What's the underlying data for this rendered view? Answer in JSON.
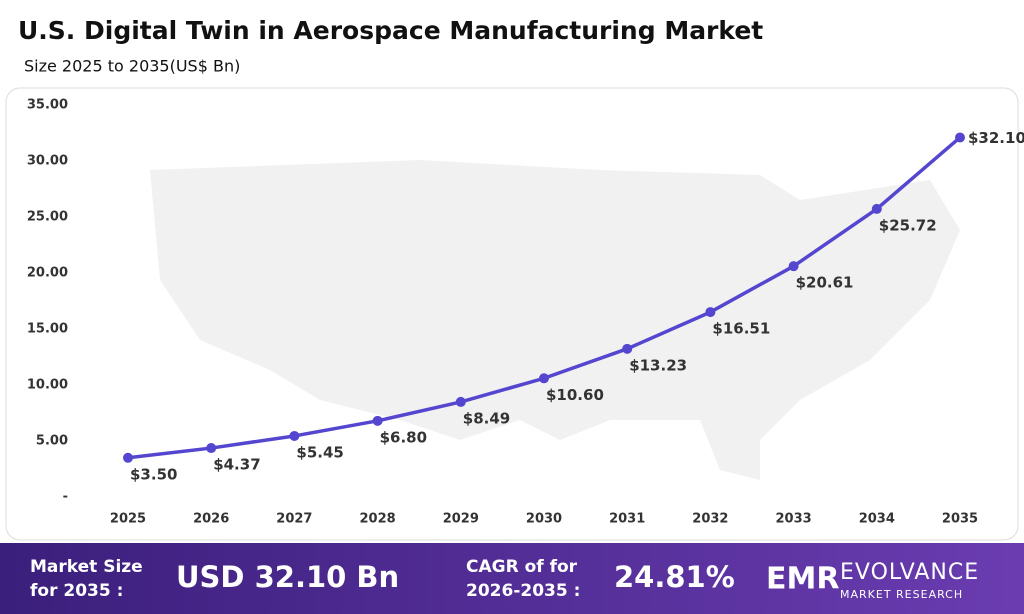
{
  "chart_data": {
    "type": "line",
    "title": "U.S. Digital Twin in Aerospace Manufacturing Market",
    "subtitle": "Size 2025 to 2035(US$ Bn)",
    "categories": [
      "2025",
      "2026",
      "2027",
      "2028",
      "2029",
      "2030",
      "2031",
      "2032",
      "2033",
      "2034",
      "2035"
    ],
    "values": [
      3.5,
      4.37,
      5.45,
      6.8,
      8.49,
      10.6,
      13.23,
      16.51,
      20.61,
      25.72,
      32.1
    ],
    "value_labels": [
      "$3.50",
      "$4.37",
      "$5.45",
      "$6.80",
      "$8.49",
      "$10.60",
      "$13.23",
      "$16.51",
      "$20.61",
      "$25.72",
      "$32.10"
    ],
    "color": "#5546cf",
    "ylim": [
      0,
      35
    ],
    "yticks": [
      {
        "value": 0,
        "label": "-"
      },
      {
        "value": 5,
        "label": "5.00"
      },
      {
        "value": 10,
        "label": "10.00"
      },
      {
        "value": 15,
        "label": "15.00"
      },
      {
        "value": 20,
        "label": "20.00"
      },
      {
        "value": 25,
        "label": "25.00"
      },
      {
        "value": 30,
        "label": "30.00"
      },
      {
        "value": 35,
        "label": "35.00"
      }
    ],
    "grid": false
  },
  "banner": {
    "market_size_label": [
      "Market Size",
      "for 2035 :"
    ],
    "market_size_value": "USD 32.10 Bn",
    "cagr_label": [
      "CAGR of for",
      "2026-2035 :"
    ],
    "cagr_value": "24.81%",
    "logo_mark": "EMR",
    "logo_name": "EVOLVANCE",
    "logo_tagline": "MARKET RESEARCH"
  }
}
